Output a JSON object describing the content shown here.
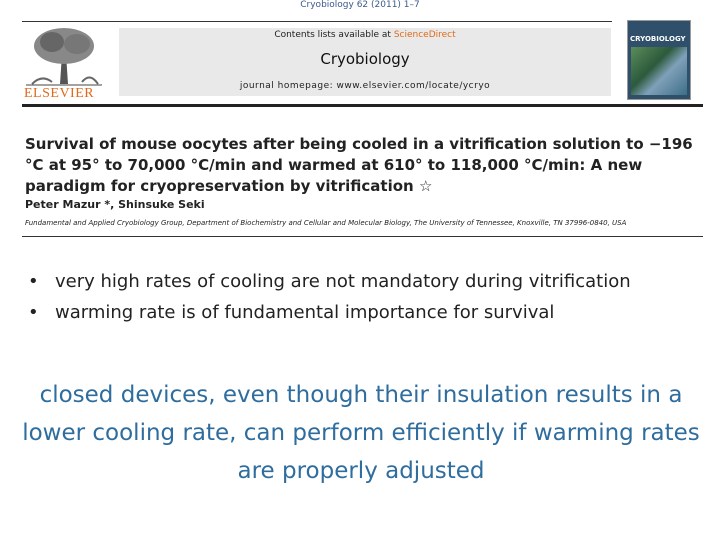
{
  "header": {
    "journal_ref": "Cryobiology 62 (2011) 1–7",
    "contents_prefix": "Contents lists available at ",
    "contents_link": "ScienceDirect",
    "journal_title": "Cryobiology",
    "homepage": "journal homepage: www.elsevier.com/locate/ycryo",
    "publisher_logo_text": "ELSEVIER",
    "cover_title": "CRYOBIOLOGY"
  },
  "paper": {
    "title": "Survival of mouse oocytes after being cooled in a vitrification solution to −196 °C at 95° to 70,000 °C/min and warmed at 610° to 118,000 °C/min: A new paradigm for cryopreservation by vitrification",
    "title_mark": "☆",
    "authors": "Peter Mazur *, Shinsuke Seki",
    "affiliation": "Fundamental and Applied Cryobiology Group, Department of Biochemistry and Cellular and Molecular Biology, The University of Tennessee, Knoxville, TN 37996-0840, USA"
  },
  "bullets": [
    {
      "text": "very high rates of cooling are not mandatory during vitrification"
    },
    {
      "text": "warming rate is of fundamental importance for survival"
    }
  ],
  "conclusion": "closed devices, even though their insulation results in a lower cooling rate, can perform efficiently if warming rates are properly adjusted",
  "colors": {
    "conclusion_text": "#2e6d9e",
    "elsevier_orange": "#e06a1a"
  }
}
